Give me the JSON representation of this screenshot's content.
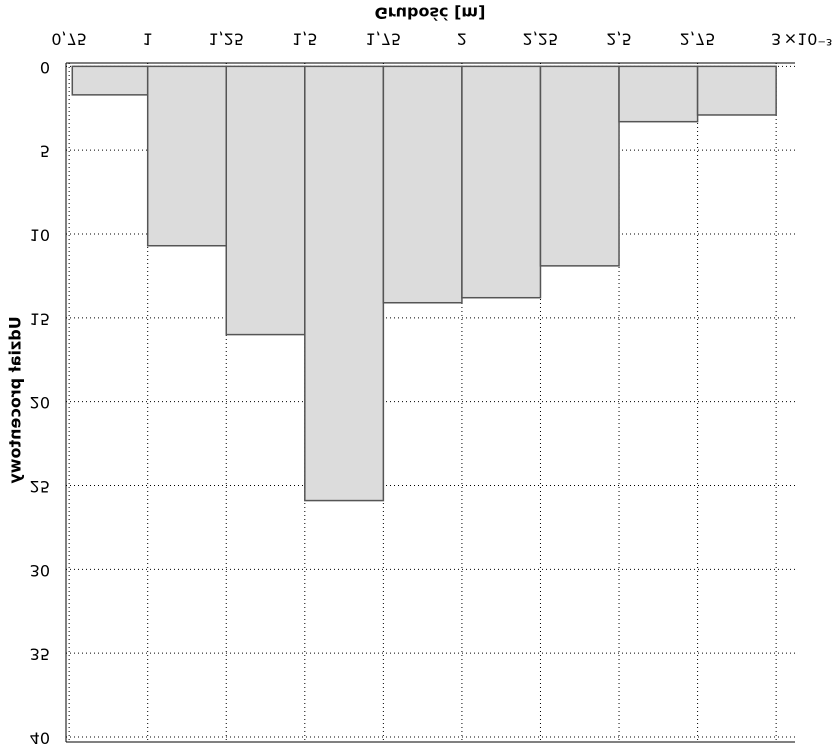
{
  "chart_data": {
    "type": "histogram",
    "title": "Grubość [m]",
    "y_label": "Udział procentowy",
    "x_multiplier": "×10⁻³",
    "bins": [
      0.76,
      1,
      1.25,
      1.5,
      1.75,
      2,
      2.25,
      2.5,
      2.75,
      3
    ],
    "values": [
      1.7,
      10.7,
      16,
      25.9,
      14.1,
      13.8,
      11.9,
      3.3,
      2.9
    ],
    "color": "#dcdcdc",
    "edge_color": "#555555",
    "xlim": [
      0.74,
      3.06
    ],
    "ylim": [
      -0.2,
      40.3
    ],
    "y_inverted": true,
    "xticks": [
      {
        "value": 0.75,
        "label": "0,75"
      },
      1,
      {
        "value": 1.25,
        "label": "1,25"
      },
      {
        "value": 1.5,
        "label": "1,5"
      },
      {
        "value": 1.75,
        "label": "1,75"
      },
      2,
      {
        "value": 2.25,
        "label": "2,25"
      },
      {
        "value": 2.5,
        "label": "2,5"
      },
      {
        "value": 2.75,
        "label": "2,75"
      },
      3
    ],
    "yticks": [
      0,
      5,
      10,
      15,
      20,
      25,
      30,
      35,
      40
    ],
    "grid": true
  }
}
